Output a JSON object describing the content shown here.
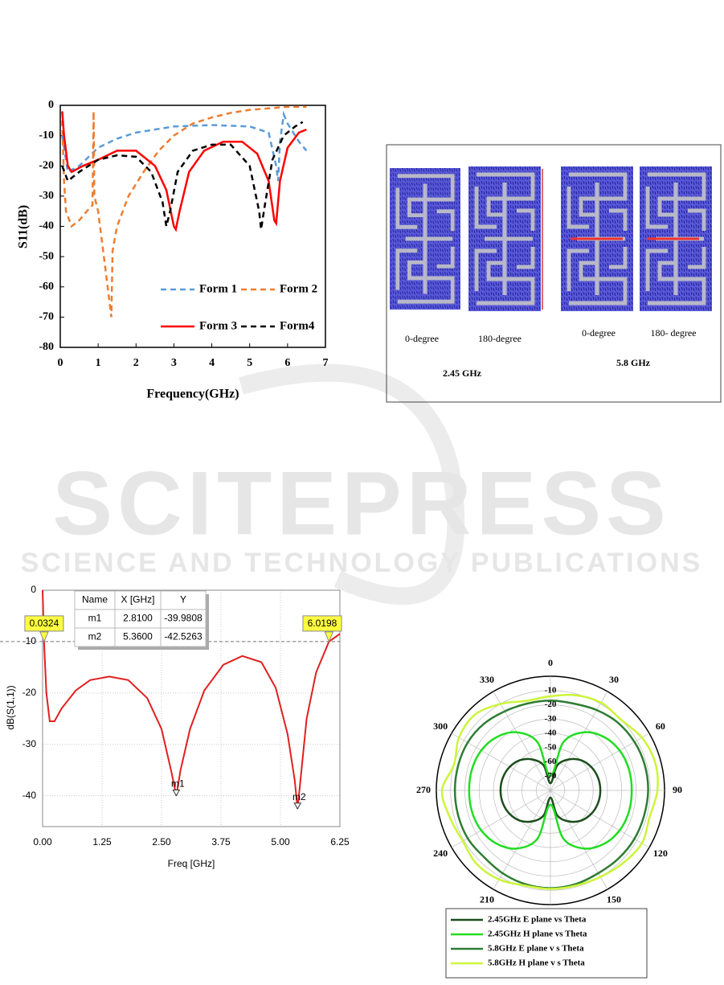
{
  "watermark": {
    "title": "SCITEPRESS",
    "subtitle": "SCIENCE AND TECHNOLOGY PUBLICATIONS"
  },
  "figure": {
    "labels": [
      "0-degree",
      "180-degree",
      "0-degree",
      "180- degree"
    ],
    "bands": [
      "2.45 GHz",
      "5.8 GHz"
    ]
  },
  "chart_data": [
    {
      "type": "line",
      "ylabel": "S11(dB)",
      "xlabel": "Frequency(GHz)",
      "xlim": [
        0,
        7
      ],
      "xticks": [
        0,
        1,
        2,
        3,
        4,
        5,
        6,
        7
      ],
      "ylim": [
        -80,
        0
      ],
      "yticks": [
        0,
        -10,
        -20,
        -30,
        -40,
        -50,
        -60,
        -70,
        -80
      ],
      "legend": "lower right",
      "series": [
        {
          "name": "Form 1",
          "color": "#5b9bd5",
          "style": "dashed",
          "x": [
            0.05,
            0.2,
            0.5,
            1,
            1.5,
            2,
            3,
            4,
            5,
            5.5,
            5.7,
            5.75,
            5.8,
            5.9,
            6.0,
            6.3,
            6.5
          ],
          "values": [
            -10,
            -22,
            -20,
            -14,
            -11,
            -9,
            -7,
            -6.5,
            -7,
            -9,
            -20,
            -25,
            -12,
            -3,
            -6,
            -12,
            -15
          ]
        },
        {
          "name": "Form 2",
          "color": "#ed7d31",
          "style": "dashed",
          "x": [
            0.05,
            0.1,
            0.15,
            0.3,
            0.5,
            0.7,
            0.85,
            0.88,
            0.9,
            1.0,
            1.1,
            1.2,
            1.3,
            1.35,
            1.38,
            1.5,
            1.8,
            2.2,
            2.6,
            3,
            3.5,
            4,
            4.5,
            5,
            5.5,
            6,
            6.5
          ],
          "values": [
            -5,
            -25,
            -35,
            -40,
            -38,
            -35,
            -33,
            -2,
            -30,
            -35,
            -45,
            -55,
            -65,
            -70,
            -48,
            -40,
            -30,
            -22,
            -15,
            -10,
            -6,
            -4,
            -2.5,
            -1.5,
            -1,
            -0.5,
            -0.5
          ]
        },
        {
          "name": "Form 3",
          "color": "#ff0000",
          "style": "solid",
          "x": [
            0.05,
            0.1,
            0.2,
            0.3,
            0.6,
            1,
            1.5,
            2,
            2.5,
            2.8,
            3,
            3.05,
            3.15,
            3.4,
            3.8,
            4.3,
            4.8,
            5.2,
            5.5,
            5.65,
            5.7,
            5.8,
            6.0,
            6.3,
            6.5
          ],
          "values": [
            -2,
            -10,
            -20,
            -22,
            -20,
            -18,
            -15,
            -15,
            -20,
            -28,
            -40,
            -41,
            -35,
            -22,
            -15,
            -12,
            -12,
            -16,
            -25,
            -38,
            -39,
            -25,
            -14,
            -9,
            -8
          ]
        },
        {
          "name": "Form4",
          "color": "#000000",
          "style": "dashed",
          "x": [
            0.05,
            0.2,
            0.5,
            1,
            1.5,
            2,
            2.4,
            2.7,
            2.8,
            2.9,
            3.1,
            3.5,
            4,
            4.5,
            5,
            5.25,
            5.3,
            5.4,
            5.6,
            5.9,
            6.2,
            6.4
          ],
          "values": [
            -20,
            -25,
            -22,
            -18,
            -16.5,
            -17,
            -22,
            -32,
            -40,
            -35,
            -22,
            -15,
            -13,
            -13,
            -20,
            -35,
            -41,
            -33,
            -18,
            -10,
            -7,
            -5.5
          ]
        }
      ]
    },
    {
      "type": "line",
      "ylabel": "dB(S(1,1))",
      "xlabel": "Freq [GHz]",
      "xlim": [
        0,
        6.25
      ],
      "xticks": [
        {
          "value": 0,
          "label": "0.00"
        },
        1.25,
        {
          "value": 2.5,
          "label": "2.50"
        },
        3.75,
        {
          "value": 5,
          "label": "5.00"
        },
        6.25
      ],
      "ylim": [
        -46,
        0
      ],
      "yticks": [
        0,
        -10,
        -20,
        -30,
        -40
      ],
      "grid": true,
      "series": [
        {
          "color": "#e02020",
          "style": "solid",
          "x": [
            0,
            0.03,
            0.08,
            0.15,
            0.25,
            0.4,
            0.7,
            1,
            1.4,
            1.8,
            2.2,
            2.5,
            2.7,
            2.81,
            2.9,
            3.1,
            3.4,
            3.8,
            4.2,
            4.6,
            4.9,
            5.15,
            5.3,
            5.36,
            5.42,
            5.55,
            5.75,
            6.02,
            6.25
          ],
          "values": [
            0,
            -10,
            -20,
            -25.5,
            -25.5,
            -23,
            -19.5,
            -17.5,
            -16.8,
            -17.5,
            -21,
            -27,
            -35,
            -39.98,
            -35,
            -27,
            -19.5,
            -14.5,
            -12.8,
            -14,
            -19,
            -28,
            -37,
            -42.53,
            -37,
            -25,
            -16,
            -10,
            -8.5
          ]
        }
      ],
      "reference_line": -10,
      "annotations": [
        {
          "x": 0.0324,
          "y": -10
        },
        {
          "x": 6.0198,
          "y": -10
        }
      ],
      "markers": [
        {
          "name": "m1",
          "x": 2.81,
          "y": -39.9808
        },
        {
          "name": "m2",
          "x": 5.36,
          "y": -42.5263
        }
      ],
      "table": {
        "columns": [
          "Name",
          "X [GHz]",
          "Y"
        ],
        "rows": [
          [
            "m1",
            "2.8100",
            "-39.9808"
          ],
          [
            "m2",
            "5.3600",
            "-42.5263"
          ]
        ]
      }
    },
    {
      "type": "polar",
      "theta": [
        0,
        15,
        30,
        45,
        60,
        75,
        90,
        105,
        120,
        135,
        150,
        165,
        180,
        195,
        210,
        225,
        240,
        255,
        270,
        285,
        300,
        315,
        330,
        345
      ],
      "thetaticks": [
        0,
        30,
        60,
        90,
        120,
        150,
        180,
        210,
        240,
        270,
        300,
        330
      ],
      "rlim": [
        -80,
        0
      ],
      "rticks": [
        -70,
        -60,
        -50,
        -40,
        -30,
        -20,
        -10
      ],
      "legend": "bottom",
      "series": [
        {
          "name": "2.45GHz E  plane vs Theta",
          "color": "#1b4d1b",
          "values": [
            -75,
            -62,
            -55,
            -50,
            -47,
            -45.5,
            -45,
            -45.5,
            -47,
            -50,
            -55,
            -62,
            -75,
            -62,
            -55,
            -50,
            -47,
            -45.5,
            -45,
            -45.5,
            -47,
            -50,
            -55,
            -62
          ]
        },
        {
          "name": "2.45GHz H  plane vs Theta",
          "color": "#22dd22",
          "values": [
            -70,
            -45,
            -33,
            -27,
            -24,
            -23,
            -23,
            -23,
            -24,
            -27,
            -33,
            -45,
            -70,
            -45,
            -33,
            -27,
            -24,
            -23,
            -23,
            -23,
            -24,
            -27,
            -33,
            -45
          ]
        },
        {
          "name": "5.8GHz E  plane v s Theta",
          "color": "#2e7d32",
          "values": [
            -17,
            -17,
            -15,
            -13,
            -12,
            -11.5,
            -11.5,
            -12,
            -12,
            -12.5,
            -13,
            -12,
            -11.5,
            -12,
            -13,
            -14,
            -13,
            -13,
            -13,
            -13,
            -13,
            -14,
            -16,
            -17
          ]
        },
        {
          "name": "5.8GHz  H plane v s Theta",
          "color": "#ccf53a",
          "values": [
            -14,
            -11,
            -9,
            -10,
            -6,
            -4,
            -5,
            -8,
            -6,
            -8,
            -10,
            -11,
            -11,
            -11,
            -8,
            -7,
            -9,
            -7,
            -4,
            -10,
            -6,
            -5,
            -10,
            -15
          ]
        }
      ]
    }
  ]
}
